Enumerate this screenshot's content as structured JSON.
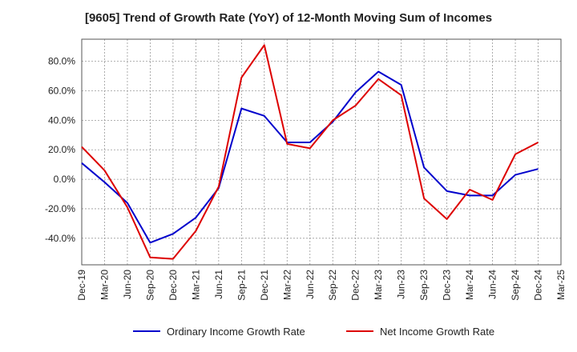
{
  "chart_data": {
    "type": "line",
    "title": "[9605]  Trend of Growth Rate (YoY) of 12-Month Moving Sum of Incomes",
    "xlabel": "",
    "ylabel": "",
    "x_ticks": [
      "Dec-19",
      "Mar-20",
      "Jun-20",
      "Sep-20",
      "Dec-20",
      "Mar-21",
      "Jun-21",
      "Sep-21",
      "Dec-21",
      "Mar-22",
      "Jun-22",
      "Sep-22",
      "Dec-22",
      "Mar-23",
      "Jun-23",
      "Sep-23",
      "Dec-23",
      "Mar-24",
      "Jun-24",
      "Sep-24",
      "Dec-24",
      "Mar-25"
    ],
    "y_ticks": [
      -40,
      -20,
      0,
      20,
      40,
      60,
      80
    ],
    "y_tick_labels": [
      "-40.0%",
      "-20.0%",
      "0.0%",
      "20.0%",
      "40.0%",
      "60.0%",
      "80.0%"
    ],
    "ylim": [
      -58,
      95
    ],
    "grid": true,
    "legend_position": "bottom",
    "series": [
      {
        "name": "Ordinary Income Growth Rate",
        "color": "#0000cc",
        "values": [
          11,
          -2,
          -16,
          -43,
          -37,
          -26,
          -6,
          48,
          43,
          25,
          25,
          39,
          59,
          73,
          64,
          8,
          -8,
          -11,
          -11,
          3,
          7,
          null
        ]
      },
      {
        "name": "Net Income Growth Rate",
        "color": "#dd0000",
        "values": [
          22,
          6,
          -19,
          -53,
          -54,
          -35,
          -5,
          69,
          91,
          24,
          21,
          40,
          50,
          68,
          57,
          -13,
          -27,
          -7,
          -14,
          17,
          25,
          null
        ]
      }
    ]
  }
}
